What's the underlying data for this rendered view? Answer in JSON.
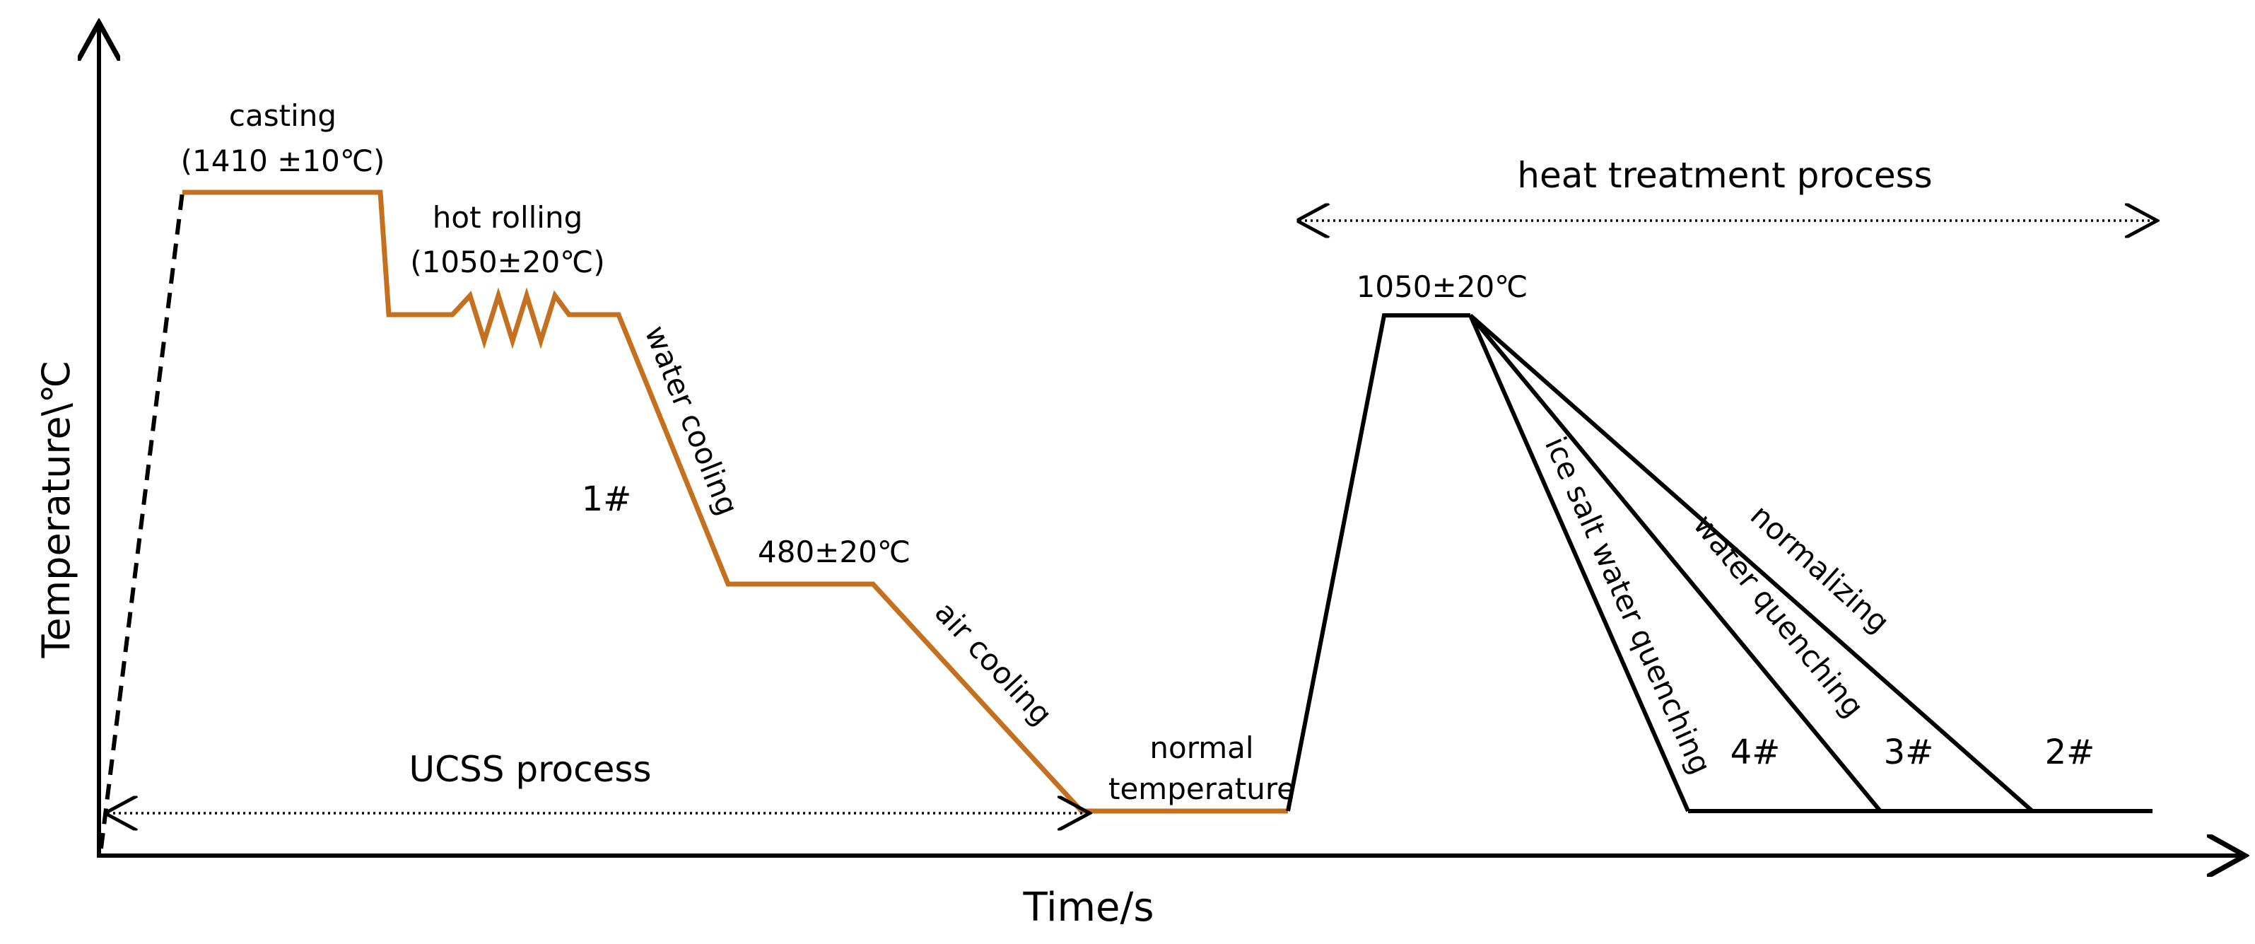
{
  "axes": {
    "y_label": "Temperature\\℃",
    "x_label": "Time/s"
  },
  "labels": {
    "casting": "casting",
    "casting_temp": "(1410 ±10℃)",
    "hot_rolling": "hot rolling",
    "hot_rolling_temp": "(1050±20℃)",
    "water_cooling": "water cooling",
    "sample_1": "1#",
    "hold_temp": "480±20℃",
    "air_cooling": "air cooling",
    "ucss_process": "UCSS process",
    "normal_temperature_1": "normal",
    "normal_temperature_2": "temperature",
    "heat_treatment_process": "heat treatment process",
    "ht_temp": "1050±20℃",
    "ice_salt": "ice salt water quenching",
    "water_quenching": "water quenching",
    "normalizing": "normalizing",
    "sample_4": "4#",
    "sample_3": "3#",
    "sample_2": "2#"
  },
  "colors": {
    "ucss_line": "#c4701f",
    "heat_treatment_line": "#000000"
  }
}
